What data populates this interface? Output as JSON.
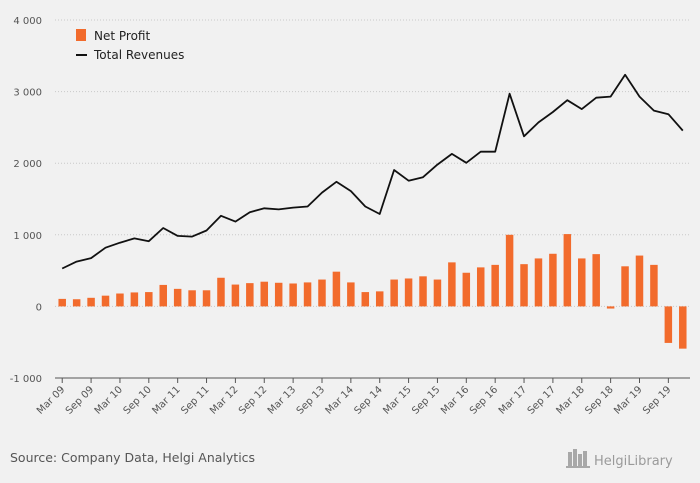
{
  "chart_data": {
    "type": "bar+line",
    "categories": [
      "Mar 09",
      "Jun 09",
      "Sep 09",
      "Dec 09",
      "Mar 10",
      "Jun 10",
      "Sep 10",
      "Dec 10",
      "Mar 11",
      "Jun 11",
      "Sep 11",
      "Dec 11",
      "Mar 12",
      "Jun 12",
      "Sep 12",
      "Dec 12",
      "Mar 13",
      "Jun 13",
      "Sep 13",
      "Dec 13",
      "Mar 14",
      "Jun 14",
      "Sep 14",
      "Dec 14",
      "Mar 15",
      "Jun 15",
      "Sep 15",
      "Dec 15",
      "Mar 16",
      "Jun 16",
      "Sep 16",
      "Dec 16",
      "Mar 17",
      "Jun 17",
      "Sep 17",
      "Dec 17",
      "Mar 18",
      "Jun 18",
      "Sep 18",
      "Dec 18",
      "Mar 19",
      "Jun 19",
      "Sep 19",
      "Dec 19"
    ],
    "tick_labels": [
      "Mar 09",
      "Sep 09",
      "Mar 10",
      "Sep 10",
      "Mar 11",
      "Sep 11",
      "Mar 12",
      "Sep 12",
      "Mar 13",
      "Sep 13",
      "Mar 14",
      "Sep 14",
      "Mar 15",
      "Sep 15",
      "Mar 16",
      "Sep 16",
      "Mar 17",
      "Sep 17",
      "Mar 18",
      "Sep 18",
      "Mar 19",
      "Sep 19"
    ],
    "series": [
      {
        "name": "Net Profit",
        "kind": "bar",
        "color": "#f26b2c",
        "values": [
          105,
          100,
          120,
          150,
          180,
          195,
          200,
          300,
          245,
          225,
          225,
          400,
          305,
          325,
          345,
          330,
          320,
          335,
          375,
          485,
          335,
          200,
          210,
          375,
          390,
          420,
          375,
          615,
          470,
          545,
          580,
          1000,
          590,
          670,
          735,
          1010,
          670,
          730,
          -30,
          560,
          710,
          580,
          -510,
          -590
        ]
      },
      {
        "name": "Total Revenues",
        "kind": "line",
        "color": "#111111",
        "values": [
          530,
          625,
          675,
          820,
          890,
          950,
          910,
          1095,
          985,
          975,
          1060,
          1265,
          1185,
          1315,
          1370,
          1355,
          1380,
          1395,
          1590,
          1740,
          1610,
          1395,
          1290,
          1905,
          1755,
          1805,
          1980,
          2130,
          2005,
          2160,
          2160,
          2970,
          2375,
          2570,
          2715,
          2880,
          2755,
          2915,
          2930,
          3235,
          2930,
          2735,
          2685,
          2455
        ]
      }
    ],
    "yticks": [
      "-1 000",
      "0",
      "1 000",
      "2 000",
      "3 000",
      "4 000"
    ],
    "ylim": [
      -1000,
      4000
    ],
    "grid": "horizontal-dotted",
    "legend": "top-left"
  },
  "footer": {
    "source": "Source: Company Data, Helgi Analytics",
    "brand": "HelgiLibrary"
  },
  "colors": {
    "background": "#f1f1f1",
    "grid": "#c9c9c9",
    "axis": "#555555"
  }
}
